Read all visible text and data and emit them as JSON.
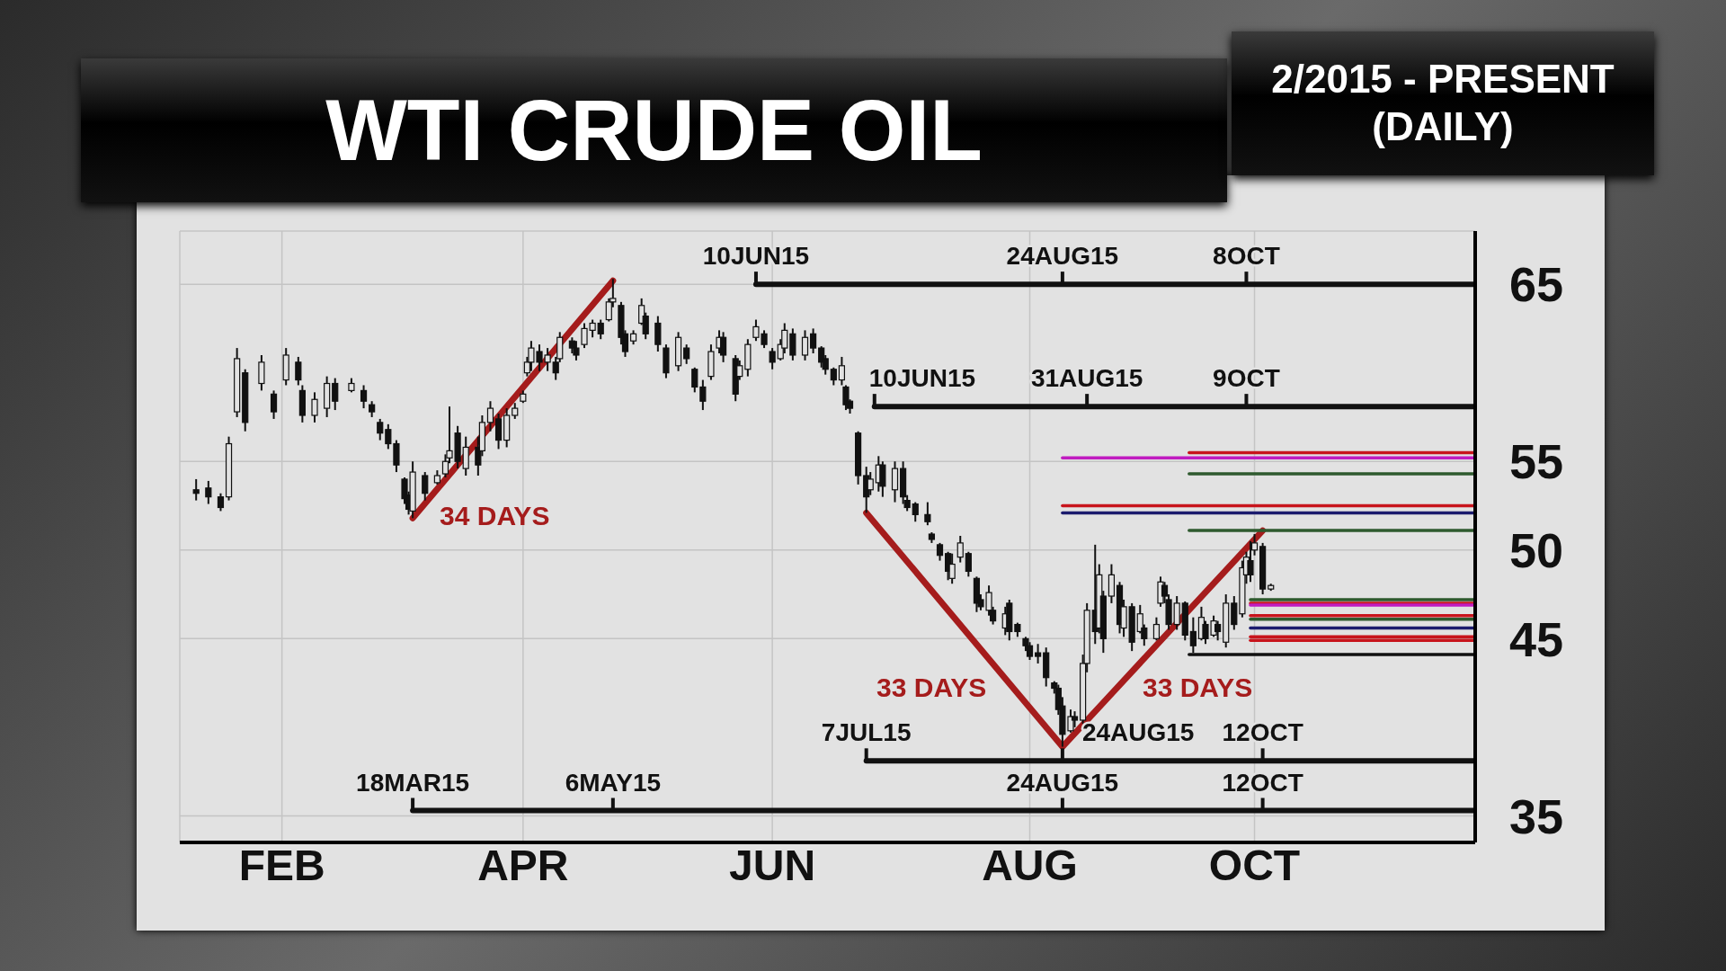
{
  "chart_data": {
    "type": "candlestick",
    "title": "WTI CRUDE OIL",
    "subtitle": "2/2015 - PRESENT (DAILY)",
    "xlim": [
      "2015-01-20",
      "2015-12-03"
    ],
    "xticks": [
      {
        "value": "2015-02-14",
        "label": "FEB"
      },
      {
        "value": "2015-04-14",
        "label": "APR"
      },
      {
        "value": "2015-06-14",
        "label": "JUN"
      },
      {
        "value": "2015-08-16",
        "label": "AUG"
      },
      {
        "value": "2015-10-10",
        "label": "OCT"
      }
    ],
    "ylim": [
      33.5,
      68
    ],
    "yticks": [
      35,
      45,
      50,
      55,
      65
    ],
    "grid": true,
    "series": [
      {
        "color": "#111111",
        "x": [
          "2015-01-24",
          "2015-01-27",
          "2015-01-30",
          "2015-02-01",
          "2015-02-03",
          "2015-02-05",
          "2015-02-09",
          "2015-02-12",
          "2015-02-15",
          "2015-02-18",
          "2015-02-19",
          "2015-02-22",
          "2015-02-25",
          "2015-02-27",
          "2015-03-03",
          "2015-03-06",
          "2015-03-08",
          "2015-03-10",
          "2015-03-12",
          "2015-03-14",
          "2015-03-16",
          "2015-03-17",
          "2015-03-18",
          "2015-03-21",
          "2015-03-24",
          "2015-03-26",
          "2015-03-27",
          "2015-03-29",
          "2015-03-31",
          "2015-04-03",
          "2015-04-04",
          "2015-04-06",
          "2015-04-08",
          "2015-04-10",
          "2015-04-12",
          "2015-04-14",
          "2015-04-15",
          "2015-04-16",
          "2015-04-18",
          "2015-04-20",
          "2015-04-22",
          "2015-04-23",
          "2015-04-26",
          "2015-04-27",
          "2015-04-29",
          "2015-05-01",
          "2015-05-03",
          "2015-05-05",
          "2015-05-06",
          "2015-05-08",
          "2015-05-09",
          "2015-05-11",
          "2015-05-13",
          "2015-05-14",
          "2015-05-17",
          "2015-05-19",
          "2015-05-22",
          "2015-05-24",
          "2015-05-26",
          "2015-05-28",
          "2015-05-30",
          "2015-06-01",
          "2015-06-02",
          "2015-06-05",
          "2015-06-06",
          "2015-06-08",
          "2015-06-10",
          "2015-06-12",
          "2015-06-14",
          "2015-06-16",
          "2015-06-17",
          "2015-06-19",
          "2015-06-22",
          "2015-06-24",
          "2015-06-26",
          "2015-06-27",
          "2015-06-29",
          "2015-07-01",
          "2015-07-02",
          "2015-07-03",
          "2015-07-05",
          "2015-07-07",
          "2015-07-08",
          "2015-07-10",
          "2015-07-11",
          "2015-07-14",
          "2015-07-16",
          "2015-07-17",
          "2015-07-19",
          "2015-07-22",
          "2015-07-23",
          "2015-07-25",
          "2015-07-27",
          "2015-07-28",
          "2015-07-30",
          "2015-08-01",
          "2015-08-03",
          "2015-08-04",
          "2015-08-06",
          "2015-08-07",
          "2015-08-10",
          "2015-08-11",
          "2015-08-13",
          "2015-08-15",
          "2015-08-16",
          "2015-08-18",
          "2015-08-20",
          "2015-08-22",
          "2015-08-23",
          "2015-08-24",
          "2015-08-26",
          "2015-08-27",
          "2015-08-29",
          "2015-08-30",
          "2015-09-01",
          "2015-09-02",
          "2015-09-03",
          "2015-09-05",
          "2015-09-07",
          "2015-09-08",
          "2015-09-10",
          "2015-09-12",
          "2015-09-13",
          "2015-09-16",
          "2015-09-17",
          "2015-09-18",
          "2015-09-19",
          "2015-09-21",
          "2015-09-23",
          "2015-09-25",
          "2015-09-27",
          "2015-09-28",
          "2015-09-30",
          "2015-10-01",
          "2015-10-03",
          "2015-10-05",
          "2015-10-07",
          "2015-10-08",
          "2015-10-09",
          "2015-10-10",
          "2015-10-12",
          "2015-10-14"
        ],
        "ohlc": [
          [
            53.4,
            54.0,
            52.8,
            53.2
          ],
          [
            53.5,
            53.9,
            52.6,
            53.0
          ],
          [
            53.0,
            53.2,
            52.2,
            52.4
          ],
          [
            53.0,
            56.4,
            52.8,
            56.0
          ],
          [
            57.8,
            61.4,
            57.5,
            60.8
          ],
          [
            60.0,
            60.2,
            56.7,
            57.2
          ],
          [
            59.4,
            61.0,
            59.0,
            60.6
          ],
          [
            58.8,
            59.0,
            57.4,
            57.8
          ],
          [
            59.6,
            61.4,
            59.3,
            61.0
          ],
          [
            60.6,
            60.9,
            59.3,
            59.6
          ],
          [
            59.0,
            59.3,
            57.2,
            57.6
          ],
          [
            57.6,
            58.9,
            57.2,
            58.5
          ],
          [
            58.0,
            59.8,
            57.5,
            59.4
          ],
          [
            59.4,
            59.7,
            57.9,
            58.4
          ],
          [
            59.0,
            59.7,
            58.9,
            59.4
          ],
          [
            59.0,
            59.3,
            58.0,
            58.4
          ],
          [
            58.2,
            58.4,
            57.5,
            57.8
          ],
          [
            57.2,
            57.4,
            56.2,
            56.6
          ],
          [
            56.8,
            57.1,
            55.7,
            56.0
          ],
          [
            56.0,
            56.2,
            54.4,
            54.8
          ],
          [
            54.0,
            54.1,
            52.6,
            52.9
          ],
          [
            53.1,
            53.3,
            52.0,
            52.3
          ],
          [
            52.2,
            55.0,
            51.8,
            54.4
          ],
          [
            54.2,
            54.4,
            52.8,
            53.2
          ],
          [
            53.8,
            54.5,
            53.7,
            54.2
          ],
          [
            54.3,
            55.4,
            54.1,
            55.0
          ],
          [
            55.2,
            58.1,
            54.9,
            55.6
          ],
          [
            56.6,
            57.0,
            54.6,
            55.0
          ],
          [
            54.6,
            56.4,
            54.2,
            55.8
          ],
          [
            55.8,
            56.4,
            54.2,
            54.8
          ],
          [
            55.6,
            57.6,
            55.3,
            57.2
          ],
          [
            57.2,
            58.4,
            56.7,
            58.0
          ],
          [
            57.4,
            57.7,
            55.7,
            56.2
          ],
          [
            56.2,
            58.0,
            55.8,
            57.6
          ],
          [
            57.6,
            58.3,
            57.4,
            58.0
          ],
          [
            58.4,
            59.0,
            58.3,
            58.8
          ],
          [
            60.0,
            60.9,
            59.8,
            60.6
          ],
          [
            60.6,
            61.8,
            60.1,
            61.4
          ],
          [
            61.2,
            61.6,
            60.1,
            60.6
          ],
          [
            60.6,
            61.4,
            60.1,
            61.0
          ],
          [
            60.6,
            60.9,
            59.6,
            60.0
          ],
          [
            60.8,
            62.3,
            60.6,
            62.0
          ],
          [
            61.8,
            62.0,
            61.1,
            61.4
          ],
          [
            61.4,
            61.8,
            60.7,
            61.0
          ],
          [
            61.6,
            62.8,
            61.4,
            62.5
          ],
          [
            62.4,
            63.0,
            62.0,
            62.8
          ],
          [
            62.8,
            63.0,
            61.9,
            62.2
          ],
          [
            63.0,
            64.2,
            62.9,
            64.0
          ],
          [
            64.0,
            65.3,
            63.7,
            64.2
          ],
          [
            63.8,
            64.0,
            61.6,
            62.0
          ],
          [
            62.2,
            62.4,
            60.9,
            61.2
          ],
          [
            61.8,
            62.4,
            61.6,
            62.2
          ],
          [
            62.8,
            64.2,
            62.7,
            63.8
          ],
          [
            63.2,
            63.4,
            61.9,
            62.2
          ],
          [
            62.8,
            63.2,
            61.2,
            61.6
          ],
          [
            61.4,
            61.6,
            59.7,
            60.0
          ],
          [
            60.4,
            62.3,
            60.1,
            62.0
          ],
          [
            61.4,
            61.6,
            60.5,
            60.8
          ],
          [
            60.2,
            60.3,
            58.9,
            59.2
          ],
          [
            59.2,
            59.6,
            57.9,
            58.4
          ],
          [
            59.8,
            61.6,
            59.6,
            61.2
          ],
          [
            61.4,
            62.4,
            61.1,
            62.0
          ],
          [
            62.0,
            62.3,
            60.6,
            61.0
          ],
          [
            60.8,
            61.0,
            58.4,
            58.8
          ],
          [
            59.8,
            60.7,
            59.6,
            60.4
          ],
          [
            60.2,
            61.9,
            59.8,
            61.6
          ],
          [
            62.0,
            63.0,
            61.8,
            62.6
          ],
          [
            62.2,
            62.4,
            61.4,
            61.6
          ],
          [
            61.2,
            61.4,
            60.2,
            60.6
          ],
          [
            60.8,
            61.9,
            60.7,
            61.6
          ],
          [
            61.4,
            62.8,
            61.1,
            62.4
          ],
          [
            62.2,
            62.5,
            60.7,
            61.0
          ],
          [
            61.0,
            62.4,
            60.7,
            62.0
          ],
          [
            62.2,
            62.5,
            61.1,
            61.4
          ],
          [
            61.4,
            61.5,
            60.3,
            60.6
          ],
          [
            60.8,
            61.0,
            59.9,
            60.2
          ],
          [
            60.2,
            60.3,
            59.3,
            59.6
          ],
          [
            59.6,
            60.9,
            59.3,
            60.4
          ],
          [
            59.2,
            59.3,
            57.9,
            58.2
          ],
          [
            58.4,
            58.5,
            57.7,
            58.0
          ],
          [
            56.6,
            56.7,
            53.7,
            54.2
          ],
          [
            54.2,
            54.7,
            52.1,
            53.0
          ],
          [
            53.4,
            54.4,
            53.1,
            54.0
          ],
          [
            53.8,
            55.3,
            53.3,
            54.8
          ],
          [
            54.8,
            55.0,
            53.0,
            53.6
          ],
          [
            53.4,
            55.0,
            52.7,
            54.6
          ],
          [
            54.6,
            55.0,
            52.6,
            53.0
          ],
          [
            52.8,
            53.1,
            52.2,
            52.4
          ],
          [
            52.6,
            52.7,
            51.6,
            52.0
          ],
          [
            52.0,
            52.7,
            51.4,
            51.6
          ],
          [
            50.9,
            51.0,
            50.4,
            50.6
          ],
          [
            50.3,
            50.4,
            49.4,
            49.7
          ],
          [
            49.8,
            49.9,
            48.3,
            48.8
          ],
          [
            48.4,
            49.8,
            48.1,
            49.2
          ],
          [
            49.6,
            50.8,
            49.3,
            50.4
          ],
          [
            49.8,
            49.9,
            48.5,
            48.8
          ],
          [
            48.4,
            48.5,
            46.5,
            47.0
          ],
          [
            47.2,
            47.5,
            46.6,
            46.8
          ],
          [
            46.6,
            48.0,
            46.3,
            47.6
          ],
          [
            46.6,
            46.8,
            45.8,
            46.0
          ],
          [
            45.6,
            46.8,
            45.2,
            46.4
          ],
          [
            47.0,
            47.2,
            44.9,
            45.4
          ],
          [
            45.8,
            45.9,
            45.1,
            45.4
          ],
          [
            45.0,
            45.1,
            44.3,
            44.6
          ],
          [
            44.6,
            44.8,
            43.8,
            44.0
          ],
          [
            44.2,
            44.7,
            43.6,
            44.0
          ],
          [
            44.2,
            44.5,
            42.3,
            42.8
          ],
          [
            42.5,
            42.6,
            41.9,
            42.2
          ],
          [
            42.2,
            42.4,
            40.7,
            41.0
          ],
          [
            41.2,
            41.7,
            38.9,
            39.6
          ],
          [
            39.8,
            41.0,
            39.7,
            40.6
          ],
          [
            40.6,
            40.9,
            40.0,
            40.4
          ],
          [
            40.4,
            44.1,
            40.2,
            43.6
          ],
          [
            43.6,
            47.0,
            43.1,
            46.6
          ],
          [
            46.6,
            50.3,
            44.7,
            45.4
          ],
          [
            45.6,
            49.2,
            45.3,
            48.6
          ],
          [
            47.4,
            47.7,
            44.2,
            45.0
          ],
          [
            47.4,
            49.2,
            47.0,
            48.6
          ],
          [
            48.0,
            48.2,
            45.3,
            45.8
          ],
          [
            45.6,
            47.2,
            45.1,
            46.8
          ],
          [
            46.8,
            47.0,
            44.3,
            44.8
          ],
          [
            45.4,
            46.9,
            45.3,
            46.4
          ],
          [
            45.6,
            45.8,
            44.6,
            45.0
          ],
          [
            45.0,
            46.2,
            44.9,
            45.8
          ],
          [
            47.0,
            48.5,
            46.8,
            48.2
          ],
          [
            48.0,
            48.2,
            47.0,
            47.4
          ],
          [
            47.2,
            47.5,
            45.5,
            45.8
          ],
          [
            45.8,
            47.4,
            45.5,
            47.0
          ],
          [
            47.0,
            47.1,
            44.9,
            45.2
          ],
          [
            45.4,
            46.2,
            44.2,
            44.6
          ],
          [
            45.0,
            46.8,
            44.9,
            46.2
          ],
          [
            45.8,
            46.0,
            44.7,
            45.0
          ],
          [
            45.2,
            46.3,
            45.1,
            46.0
          ],
          [
            45.8,
            46.0,
            44.9,
            45.4
          ],
          [
            44.8,
            47.5,
            44.5,
            47.0
          ],
          [
            47.0,
            47.4,
            45.5,
            45.8
          ],
          [
            46.4,
            49.4,
            46.2,
            49.0
          ],
          [
            48.6,
            49.9,
            48.1,
            49.6
          ],
          [
            49.4,
            50.5,
            48.2,
            48.6
          ],
          [
            50.0,
            50.9,
            49.7,
            50.4
          ],
          [
            50.2,
            50.4,
            47.5,
            47.8
          ],
          [
            47.8,
            48.1,
            47.7,
            48.0
          ]
        ]
      },
      {
        "type": "line",
        "color": "#a51c1c",
        "x": [
          "2015-03-18",
          "2015-05-06"
        ],
        "values": [
          51.8,
          65.2
        ]
      },
      {
        "type": "line",
        "color": "#a51c1c",
        "x": [
          "2015-07-07",
          "2015-08-24",
          "2015-10-12"
        ],
        "values": [
          52.1,
          38.9,
          51.1
        ]
      },
      {
        "type": "line",
        "color": "#c8141c",
        "x": [
          "2015-09-24",
          "2015-12-03"
        ],
        "values": [
          55.5,
          55.5
        ]
      },
      {
        "type": "line",
        "color": "#c01cc0",
        "x": [
          "2015-08-24",
          "2015-12-03"
        ],
        "values": [
          55.2,
          55.2
        ]
      },
      {
        "type": "line",
        "color": "#2e5a2e",
        "x": [
          "2015-09-24",
          "2015-12-03"
        ],
        "values": [
          54.3,
          54.3
        ]
      },
      {
        "type": "line",
        "color": "#c8141c",
        "x": [
          "2015-08-24",
          "2015-12-03"
        ],
        "values": [
          52.5,
          52.5
        ]
      },
      {
        "type": "line",
        "color": "#1c1c6e",
        "x": [
          "2015-08-24",
          "2015-12-03"
        ],
        "values": [
          52.1,
          52.1
        ]
      },
      {
        "type": "line",
        "color": "#2e5a2e",
        "x": [
          "2015-09-24",
          "2015-12-03"
        ],
        "values": [
          51.1,
          51.1
        ]
      },
      {
        "type": "line",
        "color": "#2e5a2e",
        "x": [
          "2015-10-09",
          "2015-12-03"
        ],
        "values": [
          47.2,
          47.2
        ]
      },
      {
        "type": "line",
        "color": "#c8141c",
        "x": [
          "2015-10-09",
          "2015-12-03"
        ],
        "values": [
          47.0,
          47.0
        ]
      },
      {
        "type": "line",
        "color": "#c01cc0",
        "x": [
          "2015-10-09",
          "2015-12-03"
        ],
        "values": [
          46.9,
          46.9
        ]
      },
      {
        "type": "line",
        "color": "#c8141c",
        "x": [
          "2015-10-09",
          "2015-12-03"
        ],
        "values": [
          46.3,
          46.3
        ]
      },
      {
        "type": "line",
        "color": "#2e5a2e",
        "x": [
          "2015-10-09",
          "2015-12-03"
        ],
        "values": [
          46.1,
          46.1
        ]
      },
      {
        "type": "line",
        "color": "#1c1c6e",
        "x": [
          "2015-10-09",
          "2015-12-03"
        ],
        "values": [
          45.6,
          45.6
        ]
      },
      {
        "type": "line",
        "color": "#c8141c",
        "x": [
          "2015-10-09",
          "2015-12-03"
        ],
        "values": [
          45.1,
          45.1
        ]
      },
      {
        "type": "line",
        "color": "#c8141c",
        "x": [
          "2015-10-09",
          "2015-12-03"
        ],
        "values": [
          44.9,
          44.9
        ]
      },
      {
        "type": "line",
        "color": "#111111",
        "x": [
          "2015-09-24",
          "2015-12-03"
        ],
        "values": [
          44.1,
          44.1
        ]
      },
      {
        "type": "line",
        "color": "#111111",
        "x": [
          "2015-06-10",
          "2015-12-03"
        ],
        "values": [
          65,
          65
        ]
      },
      {
        "type": "line",
        "color": "#111111",
        "x": [
          "2015-07-09",
          "2015-12-03"
        ],
        "values": [
          58.1,
          58.1
        ]
      },
      {
        "type": "line",
        "color": "#111111",
        "x": [
          "2015-07-07",
          "2015-12-03"
        ],
        "values": [
          38.1,
          38.1
        ]
      },
      {
        "type": "line",
        "color": "#111111",
        "x": [
          "2015-03-18",
          "2015-12-03"
        ],
        "values": [
          35.3,
          35.3
        ]
      }
    ],
    "annotations": [
      {
        "text": "34 DAYS",
        "x": "2015-03-18",
        "y": 51.8
      },
      {
        "text": "33 DAYS",
        "x": "2015-08-12",
        "y": 42.1
      },
      {
        "text": "33 DAYS",
        "x": "2015-09-06",
        "y": 42.1
      },
      {
        "text": "10JUN15",
        "x": "2015-06-10",
        "y": 65
      },
      {
        "text": "24AUG15",
        "x": "2015-08-24",
        "y": 65
      },
      {
        "text": "8OCT",
        "x": "2015-10-08",
        "y": 65
      },
      {
        "text": "10JUN15",
        "x": "2015-07-09",
        "y": 58.1
      },
      {
        "text": "31AUG15",
        "x": "2015-08-30",
        "y": 58.1
      },
      {
        "text": "9OCT",
        "x": "2015-10-08",
        "y": 58.1
      },
      {
        "text": "7JUL15",
        "x": "2015-07-07",
        "y": 38.1
      },
      {
        "text": "24AUG15",
        "x": "2015-08-24",
        "y": 38.1
      },
      {
        "text": "12OCT",
        "x": "2015-10-12",
        "y": 38.1
      },
      {
        "text": "18MAR15",
        "x": "2015-03-18",
        "y": 35.3
      },
      {
        "text": "6MAY15",
        "x": "2015-05-06",
        "y": 35.3
      },
      {
        "text": "24AUG15",
        "x": "2015-08-24",
        "y": 35.3
      },
      {
        "text": "12OCT",
        "x": "2015-10-12",
        "y": 35.3
      }
    ]
  }
}
